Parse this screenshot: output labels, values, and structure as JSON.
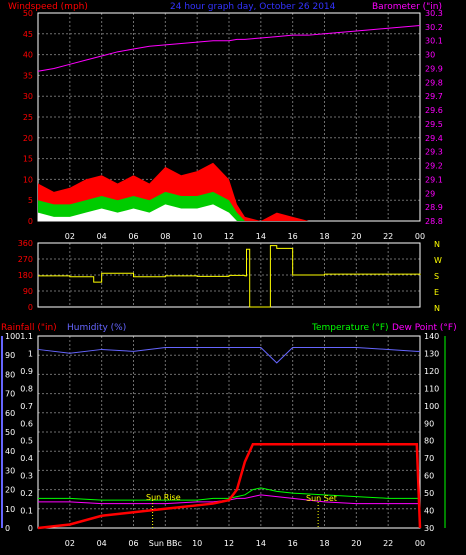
{
  "header": {
    "wind_title": "Windspeed (mph)",
    "graph_title": "24 hour graph day,  October 26 2014",
    "baro_title": "Barometer (\"in)"
  },
  "lower_header": {
    "rain_title": "Rainfall (\"in)",
    "hum_title": "Humidity (%)",
    "temp_title": "Temperature (°F)",
    "dew_title": "Dew Point (°F)"
  },
  "annotations": {
    "sun_rise": "Sun Rise",
    "sun_set": "Sun Set",
    "sun_bbc": "Sun BBc"
  },
  "colors": {
    "wind_avg": "#00cc00",
    "wind_gust": "#ff0000",
    "wind_min": "#ffffff",
    "barometer": "#ff00ff",
    "direction": "#ffff00",
    "humidity": "#6666ff",
    "rain": "#ff0000",
    "temperature": "#00ff00",
    "dewpoint": "#ff00ff",
    "grid": "#6e6e6e",
    "axis_wind": "#ff0000",
    "axis_rain": "#6666ff",
    "axis_temp": "#00ff00"
  },
  "chart_data": [
    {
      "type": "area",
      "title": "24 hour graph day,  October 26 2014",
      "xlabels": [
        "02",
        "04",
        "06",
        "08",
        "10",
        "12",
        "14",
        "16",
        "18",
        "20",
        "22",
        "00"
      ],
      "x": [
        0,
        1,
        2,
        3,
        4,
        5,
        6,
        7,
        8,
        9,
        10,
        11,
        12,
        12.5,
        13,
        14,
        15,
        16,
        17,
        18,
        19,
        20,
        21,
        22,
        23,
        24
      ],
      "ylim_left": [
        0,
        50
      ],
      "yticks_left": [
        "0",
        "5",
        "10",
        "15",
        "20",
        "25",
        "30",
        "35",
        "40",
        "45",
        "50"
      ],
      "ylim_right": [
        28.8,
        30.3
      ],
      "yticks_right": [
        "28.8",
        "28.9",
        "29",
        "29.1",
        "29.2",
        "29.3",
        "29.4",
        "29.5",
        "29.6",
        "29.7",
        "29.8",
        "29.9",
        "30",
        "30.1",
        "30.2",
        "30.3"
      ],
      "series": [
        {
          "name": "Windspeed (mph)",
          "axis": "left",
          "values": [
            9,
            7,
            8,
            10,
            11,
            9,
            11,
            9,
            13,
            11,
            12,
            14,
            10,
            4,
            1,
            0,
            2,
            1,
            0,
            0,
            0,
            0,
            0,
            0,
            0,
            0
          ]
        },
        {
          "name": "",
          "axis": "left",
          "values": [
            5,
            4,
            4,
            5,
            6,
            5,
            6,
            5,
            7,
            6,
            6,
            7,
            5,
            2,
            0,
            0,
            0,
            0,
            0,
            0,
            0,
            0,
            0,
            0,
            0,
            0
          ]
        },
        {
          "name": "",
          "axis": "left",
          "values": [
            2,
            1,
            1,
            2,
            3,
            2,
            3,
            2,
            4,
            3,
            3,
            4,
            2,
            0,
            0,
            0,
            0,
            0,
            0,
            0,
            0,
            0,
            0,
            0,
            0,
            0
          ]
        },
        {
          "name": "Barometer (\"in)",
          "axis": "right",
          "values": [
            29.88,
            29.9,
            29.93,
            29.96,
            29.99,
            30.02,
            30.04,
            30.06,
            30.07,
            30.08,
            30.09,
            30.1,
            30.1,
            30.11,
            30.11,
            30.12,
            30.13,
            30.14,
            30.14,
            30.15,
            30.16,
            30.17,
            30.18,
            30.19,
            30.2,
            30.21
          ]
        }
      ]
    },
    {
      "type": "line",
      "xlim": [
        0,
        24
      ],
      "ylim": [
        0,
        360
      ],
      "yticks": [
        "0",
        "90",
        "180",
        "270",
        "360"
      ],
      "compass": [
        "N",
        "W",
        "S",
        "E",
        "N"
      ],
      "x": [
        0,
        2,
        3.5,
        4,
        6,
        8,
        10,
        12,
        13,
        13.1,
        13.3,
        14,
        14.5,
        14.6,
        15,
        16,
        18,
        24
      ],
      "values": [
        175,
        170,
        140,
        190,
        170,
        175,
        172,
        178,
        175,
        325,
        0,
        0,
        0,
        345,
        330,
        180,
        185,
        180
      ]
    },
    {
      "type": "line",
      "xlabels": [
        "02",
        "04",
        "06",
        "Sun BBc",
        "10",
        "12",
        "14",
        "16",
        "18",
        "20",
        "22",
        "00"
      ],
      "x": [
        0,
        2,
        4,
        6,
        8,
        10,
        11,
        12,
        12.5,
        13,
        13.5,
        14,
        15,
        16,
        18,
        20,
        22,
        23.8,
        24
      ],
      "ylim_left": [
        0,
        100
      ],
      "yticks_rain": [
        "0",
        "0.1",
        "0.2",
        "0.3",
        "0.4",
        "0.5",
        "0.6",
        "0.7",
        "0.8",
        "0.9",
        "1",
        "1.1"
      ],
      "yticks_hum": [
        "0",
        "10",
        "20",
        "30",
        "40",
        "50",
        "60",
        "70",
        "80",
        "90",
        "100"
      ],
      "ylim_right": [
        30,
        140
      ],
      "yticks_temp": [
        "30",
        "40",
        "50",
        "60",
        "70",
        "80",
        "90",
        "100",
        "110",
        "120",
        "130",
        "140"
      ],
      "series": [
        {
          "name": "Rainfall (\"in)",
          "axis": "left",
          "values": [
            0,
            0.02,
            0.07,
            0.09,
            0.11,
            0.13,
            0.14,
            0.16,
            0.22,
            0.38,
            0.48,
            0.48,
            0.48,
            0.48,
            0.48,
            0.48,
            0.48,
            0.48,
            0
          ]
        },
        {
          "name": "Humidity (%)",
          "axis": "left",
          "values": [
            93,
            91,
            93,
            92,
            94,
            94,
            94,
            94,
            94,
            94,
            94,
            94,
            86,
            94,
            94,
            94,
            93,
            92,
            92
          ]
        },
        {
          "name": "Temperature (°F)",
          "axis": "right",
          "values": [
            47,
            47,
            46,
            46,
            46,
            46,
            47,
            47,
            48,
            49,
            52,
            53,
            51,
            50,
            49,
            48,
            47,
            47,
            47
          ]
        },
        {
          "name": "Dew Point (°F)",
          "axis": "right",
          "values": [
            45,
            45,
            44,
            44,
            44,
            45,
            45,
            46,
            47,
            47,
            48,
            49,
            48,
            47,
            45,
            44,
            44,
            44,
            44
          ]
        }
      ]
    }
  ]
}
